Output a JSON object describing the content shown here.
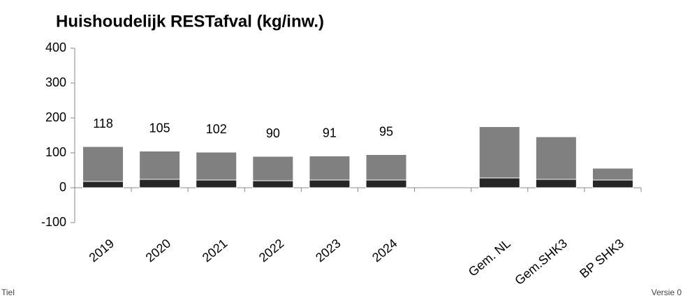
{
  "chart_data": {
    "type": "stacked_bar",
    "title": "Huishoudelijk RESTafval (kg/inw.)",
    "categories": [
      "2019",
      "2020",
      "2021",
      "2022",
      "2023",
      "2024",
      null,
      "Gem. NL",
      "Gem.SHK3",
      "BP SHK3"
    ],
    "series": [
      {
        "color": "#262626",
        "values": [
          18,
          24,
          22,
          20,
          22,
          22,
          null,
          28,
          24,
          22
        ]
      },
      {
        "color": "#808080",
        "values": [
          100,
          81,
          80,
          70,
          69,
          73,
          null,
          147,
          122,
          34
        ]
      }
    ],
    "totals": [
      118,
      105,
      102,
      90,
      91,
      95,
      null,
      null,
      null,
      null
    ],
    "ylim": [
      -100,
      400
    ],
    "yticks": [
      -100,
      0,
      100,
      200,
      300,
      400
    ],
    "footer_left": "Tiel",
    "footer_right": "Versie 0"
  }
}
